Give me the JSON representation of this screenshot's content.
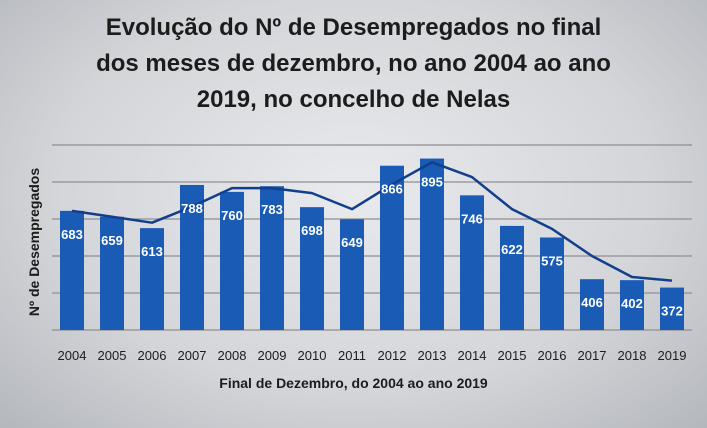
{
  "chart_data": {
    "type": "bar",
    "title_lines": [
      "Evolução do Nº de Desempregados no final",
      "dos meses de dezembro, no ano 2004 ao ano",
      "2019, no concelho de Nelas"
    ],
    "xlabel": "Final de Dezembro, do 2004 ao ano 2019",
    "ylabel": "Nº de Desempregados",
    "categories": [
      "2004",
      "2005",
      "2006",
      "2007",
      "2008",
      "2009",
      "2010",
      "2011",
      "2012",
      "2013",
      "2014",
      "2015",
      "2016",
      "2017",
      "2018",
      "2019"
    ],
    "values": [
      683,
      659,
      613,
      788,
      760,
      783,
      698,
      649,
      866,
      895,
      746,
      622,
      575,
      406,
      402,
      372
    ],
    "data_labels": [
      "683",
      "659",
      "613",
      "788",
      "760",
      "783",
      "698",
      "649",
      "866",
      "895",
      "746",
      "622",
      "575",
      "406",
      "402",
      "372"
    ],
    "trend_line": {
      "type": "line",
      "values": [
        683,
        659,
        635,
        700,
        775,
        775,
        755,
        690,
        790,
        880,
        820,
        690,
        610,
        500,
        415,
        400
      ]
    },
    "ylim": [
      200,
      950
    ],
    "grid": true,
    "colors": {
      "bar": "#1a5bb5",
      "line": "#123f8c",
      "grid": "#8d8f94",
      "label": "#ffffff"
    }
  }
}
